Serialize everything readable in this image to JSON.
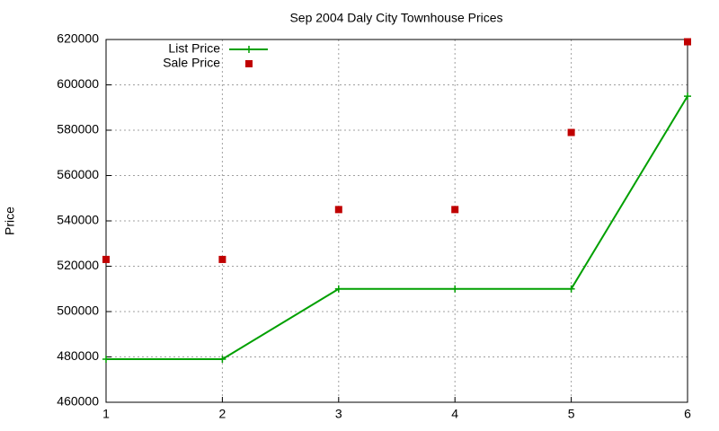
{
  "chart_data": {
    "type": "line",
    "title": "Sep 2004 Daly City Townhouse Prices",
    "ylabel": "Price",
    "x": [
      1,
      2,
      3,
      4,
      5,
      6
    ],
    "series": [
      {
        "name": "List Price",
        "color": "#00a000",
        "mode": "lines+markers",
        "values": [
          479000,
          479000,
          510000,
          510000,
          510000,
          595000
        ]
      },
      {
        "name": "Sale Price",
        "color": "#c00000",
        "mode": "markers",
        "values": [
          523000,
          523000,
          545000,
          545000,
          579000,
          619000
        ]
      }
    ],
    "xlim": [
      1,
      6
    ],
    "xticks": [
      1,
      2,
      3,
      4,
      5,
      6
    ],
    "ylim": [
      460000,
      620000
    ],
    "yticks": [
      460000,
      480000,
      500000,
      520000,
      540000,
      560000,
      580000,
      600000,
      620000
    ],
    "grid": true,
    "legend": "top-left"
  }
}
